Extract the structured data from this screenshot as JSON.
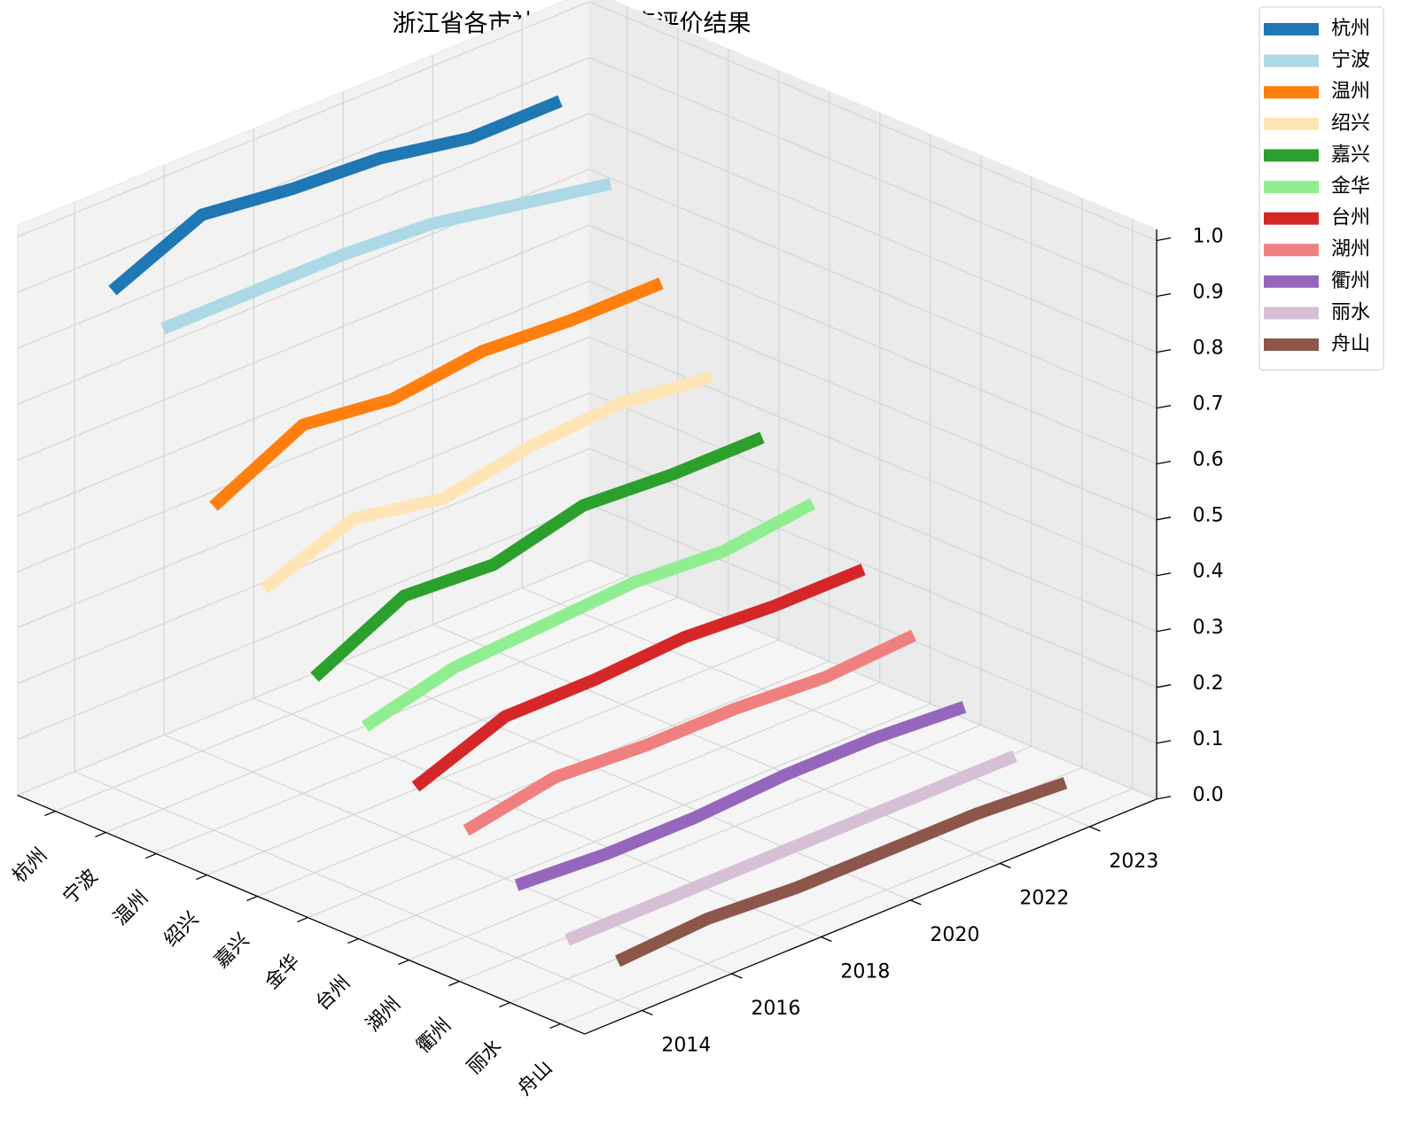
{
  "chart_data": {
    "type": "line3d",
    "title": "浙江省各市社会参与维度评价结果",
    "categories": [
      "杭州",
      "宁波",
      "温州",
      "绍兴",
      "嘉兴",
      "金华",
      "台州",
      "湖州",
      "衢州",
      "丽水",
      "舟山"
    ],
    "x": [
      "2014",
      "2016",
      "2018",
      "2020",
      "2022",
      "2023"
    ],
    "series": [
      {
        "name": "杭州",
        "color": "#1f77b4",
        "values": [
          0.89,
          0.96,
          0.94,
          0.93,
          0.9,
          0.9
        ]
      },
      {
        "name": "宁波",
        "color": "#add8e6",
        "values": [
          0.86,
          0.86,
          0.86,
          0.85,
          0.82,
          0.79
        ]
      },
      {
        "name": "温州",
        "color": "#ff7f0e",
        "values": [
          0.58,
          0.66,
          0.64,
          0.66,
          0.65,
          0.65
        ]
      },
      {
        "name": "绍兴",
        "color": "#ffe4b5",
        "values": [
          0.47,
          0.53,
          0.5,
          0.53,
          0.54,
          0.52
        ]
      },
      {
        "name": "嘉兴",
        "color": "#2ca02c",
        "values": [
          0.35,
          0.43,
          0.42,
          0.46,
          0.45,
          0.45
        ]
      },
      {
        "name": "金华",
        "color": "#90ee90",
        "values": [
          0.3,
          0.34,
          0.35,
          0.36,
          0.35,
          0.37
        ]
      },
      {
        "name": "台州",
        "color": "#d62728",
        "values": [
          0.23,
          0.29,
          0.29,
          0.3,
          0.29,
          0.29
        ]
      },
      {
        "name": "湖州",
        "color": "#f08080",
        "values": [
          0.19,
          0.22,
          0.21,
          0.21,
          0.2,
          0.21
        ]
      },
      {
        "name": "衢州",
        "color": "#9467bd",
        "values": [
          0.13,
          0.12,
          0.12,
          0.13,
          0.13,
          0.12
        ]
      },
      {
        "name": "丽水",
        "color": "#d8bfd8",
        "values": [
          0.07,
          0.07,
          0.07,
          0.07,
          0.07,
          0.07
        ]
      },
      {
        "name": "舟山",
        "color": "#8c564b",
        "values": [
          0.07,
          0.08,
          0.07,
          0.07,
          0.07,
          0.06
        ]
      }
    ],
    "zlim": [
      0,
      1.02
    ],
    "zticks": [
      {
        "value": 0,
        "label": "0.0"
      },
      0.1,
      0.2,
      0.3,
      0.4,
      0.5,
      0.6,
      0.7,
      0.8,
      0.9,
      {
        "value": 1,
        "label": "1.0"
      }
    ],
    "grid": true
  }
}
